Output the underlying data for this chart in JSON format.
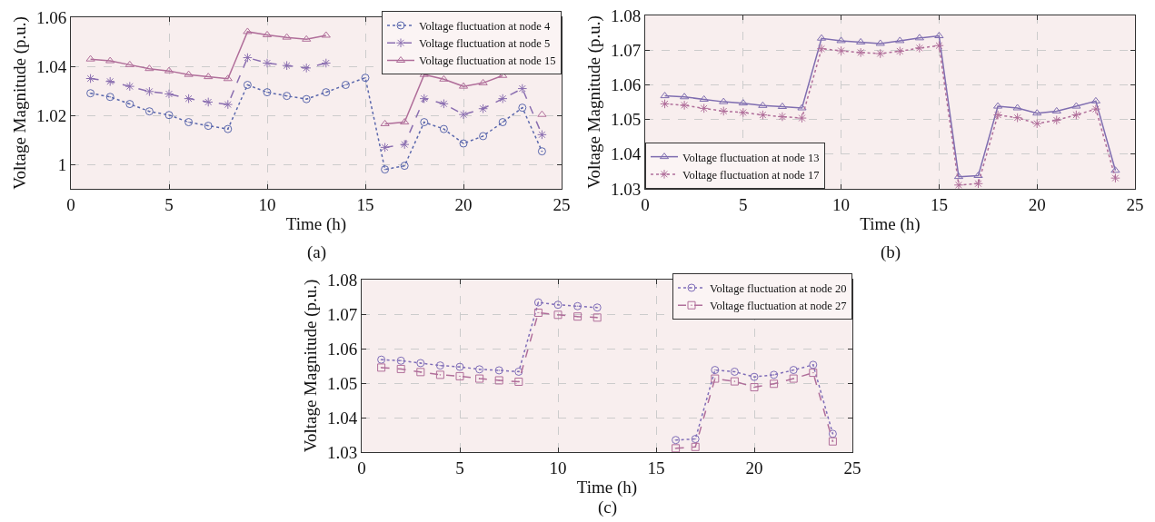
{
  "chart_data": [
    {
      "type": "line",
      "xlabel": "Time (h)",
      "ylabel": "Voltage Magnitude (p.u.)",
      "annotations": [
        "(a)"
      ],
      "x": [
        1,
        2,
        3,
        4,
        5,
        6,
        7,
        8,
        9,
        10,
        11,
        12,
        13,
        14,
        15,
        16,
        17,
        18,
        19,
        20,
        21,
        22,
        23,
        24
      ],
      "xlim": [
        0,
        25
      ],
      "xticks": [
        0,
        5,
        10,
        15,
        20,
        25
      ],
      "ylim": [
        0.99,
        1.06
      ],
      "yticks": [
        1,
        1.02,
        1.04,
        1.06
      ],
      "grid": true,
      "legend": "top right",
      "series": [
        {
          "name": "Voltage fluctuation at node 4",
          "color": "#5b68ad",
          "marker": "circle",
          "line_style": "dotted",
          "values": [
            1.029,
            1.0275,
            1.0246,
            1.0216,
            1.0201,
            1.0172,
            1.0157,
            1.0144,
            1.0324,
            1.0294,
            1.0279,
            1.0266,
            1.0294,
            1.0324,
            1.0353,
            0.9979,
            0.9994,
            1.0172,
            1.0144,
            1.0085,
            1.0115,
            1.0172,
            1.0231,
            1.0053
          ]
        },
        {
          "name": "Voltage fluctuation at node 5",
          "color": "#8a6eb0",
          "marker": "cross",
          "line_style": "dashed",
          "values": [
            1.035,
            1.0338,
            1.0318,
            1.0297,
            1.0287,
            1.0268,
            1.0254,
            1.0244,
            1.0435,
            1.0413,
            1.0403,
            1.0393,
            1.0413,
            null,
            null,
            1.0069,
            1.0081,
            1.0268,
            1.0247,
            1.0203,
            1.0227,
            1.0268,
            1.0309,
            1.0121
          ]
        },
        {
          "name": "Voltage fluctuation at node 15",
          "color": "#b06e9a",
          "marker": "triangle",
          "line_style": "solid",
          "values": [
            1.0429,
            1.0422,
            1.0406,
            1.039,
            1.0381,
            1.0366,
            1.0357,
            1.0349,
            1.0541,
            1.0528,
            1.0518,
            1.051,
            1.0526,
            null,
            null,
            1.0165,
            1.0172,
            1.0366,
            1.0347,
            1.0318,
            1.0332,
            1.0362,
            null,
            1.0203
          ]
        }
      ]
    },
    {
      "type": "line",
      "xlabel": "Time (h)",
      "ylabel": "Voltage Magnitude (p.u.)",
      "annotations": [
        "(b)"
      ],
      "x": [
        1,
        2,
        3,
        4,
        5,
        6,
        7,
        8,
        9,
        10,
        11,
        12,
        13,
        14,
        15,
        16,
        17,
        18,
        19,
        20,
        21,
        22,
        23,
        24
      ],
      "xlim": [
        0,
        25
      ],
      "xticks": [
        0,
        5,
        10,
        15,
        20,
        25
      ],
      "ylim": [
        1.03,
        1.08
      ],
      "yticks": [
        1.03,
        1.04,
        1.05,
        1.06,
        1.07,
        1.08
      ],
      "grid": true,
      "legend": "bottom left",
      "series": [
        {
          "name": "Voltage fluctuation at node 13",
          "color": "#7f6db0",
          "marker": "triangle",
          "line_style": "solid",
          "values": [
            1.0568,
            1.0565,
            1.0558,
            1.0551,
            1.0547,
            1.054,
            1.0537,
            1.0533,
            1.0734,
            1.0727,
            1.0723,
            1.0719,
            1.0727,
            1.0735,
            1.0741,
            1.0335,
            1.0338,
            1.0538,
            1.0533,
            1.0518,
            1.0524,
            1.0538,
            1.0553,
            1.0353
          ]
        },
        {
          "name": "Voltage fluctuation at node 17",
          "color": "#b06e9a",
          "marker": "cross",
          "line_style": "dotted",
          "values": [
            1.0545,
            1.0541,
            1.0532,
            1.0524,
            1.052,
            1.0513,
            1.0508,
            1.0504,
            1.0704,
            1.0698,
            1.0693,
            1.069,
            1.0697,
            1.0706,
            1.0713,
            1.0311,
            1.0315,
            1.0513,
            1.0505,
            1.0488,
            1.0498,
            1.0513,
            1.053,
            1.0331
          ]
        }
      ]
    },
    {
      "type": "line",
      "xlabel": "Time (h)",
      "ylabel": "Voltage Magnitude (p.u.)",
      "annotations": [
        "(c)"
      ],
      "x": [
        1,
        2,
        3,
        4,
        5,
        6,
        7,
        8,
        9,
        10,
        11,
        12,
        13,
        14,
        15,
        16,
        17,
        18,
        19,
        20,
        21,
        22,
        23,
        24
      ],
      "xlim": [
        0,
        25
      ],
      "xticks": [
        0,
        5,
        10,
        15,
        20,
        25
      ],
      "ylim": [
        1.03,
        1.08
      ],
      "yticks": [
        1.03,
        1.04,
        1.05,
        1.06,
        1.07,
        1.08
      ],
      "grid": true,
      "legend": "top right",
      "series": [
        {
          "name": "Voltage fluctuation at node 20",
          "color": "#7f6db8",
          "marker": "circle",
          "line_style": "dotted",
          "values": [
            1.0568,
            1.0565,
            1.0558,
            1.0551,
            1.0547,
            1.054,
            1.0537,
            1.0533,
            1.0734,
            1.0727,
            1.0723,
            1.0719,
            null,
            null,
            null,
            1.0335,
            1.0338,
            1.0538,
            1.0533,
            1.0518,
            1.0524,
            1.0538,
            1.0553,
            1.0353
          ]
        },
        {
          "name": "Voltage fluctuation at node 27",
          "color": "#b06e9a",
          "marker": "square",
          "line_style": "dashed",
          "values": [
            1.0545,
            1.0541,
            1.0532,
            1.0524,
            1.052,
            1.0513,
            1.0508,
            1.0504,
            1.0704,
            1.0698,
            1.0693,
            1.069,
            null,
            null,
            null,
            1.0311,
            1.0315,
            1.0513,
            1.0505,
            1.0488,
            1.0498,
            1.0513,
            1.053,
            1.0331
          ]
        }
      ]
    }
  ]
}
